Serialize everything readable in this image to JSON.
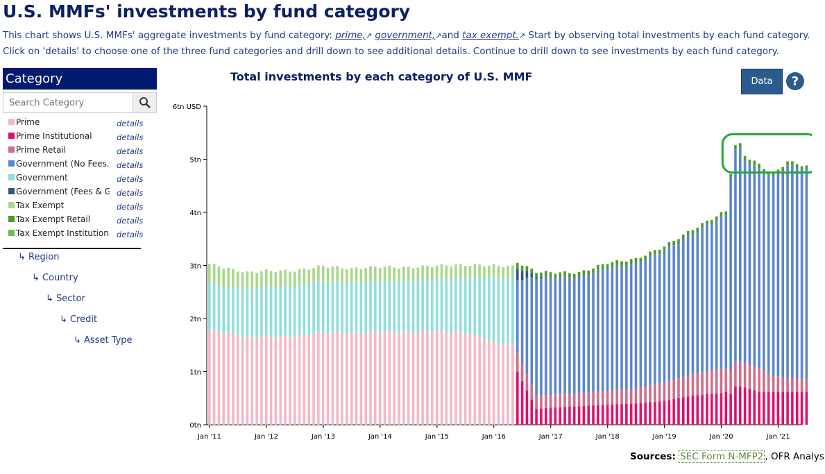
{
  "page": {
    "title": "U.S. MMFs' investments by fund category",
    "intro": {
      "text1": "This chart shows U.S. MMFs' aggregate investments by fund category: ",
      "link_prime": "prime,",
      "link_government": "government,",
      "text_and": "and ",
      "link_tax_exempt": "tax exempt.",
      "text2": " Start by observing total investments by each fund category. Click on 'details' to choose one of the three fund categories and drill down to see additional details. Continue to drill down to see investments by each fund category."
    },
    "ext_icon": "external-link-icon"
  },
  "sidebar": {
    "header": "Category",
    "search_placeholder": "Search Category",
    "search_icon": "search-icon",
    "categories": [
      {
        "label": "Prime",
        "color": "#f4b8c4",
        "details": "details"
      },
      {
        "label": "Prime Institutional",
        "color": "#e0106b",
        "details": "details"
      },
      {
        "label": "Prime Retail",
        "color": "#cc6f8a",
        "details": "details"
      },
      {
        "label": "Government (No Fees...",
        "color": "#5b86cc",
        "details": "details"
      },
      {
        "label": "Government",
        "color": "#8fdedd",
        "details": "details"
      },
      {
        "label": "Government (Fees & G...",
        "color": "#34567a",
        "details": "details"
      },
      {
        "label": "Tax Exempt",
        "color": "#a8d88c",
        "details": "details"
      },
      {
        "label": "Tax Exempt Retail",
        "color": "#4f9a2a",
        "details": "details"
      },
      {
        "label": "Tax Exempt Institutional",
        "color": "#6bbf4a",
        "details": "details"
      }
    ],
    "hierarchy": [
      "↳ Region",
      "↳ Country",
      "↳ Sector",
      "↳ Credit",
      "↳ Asset Type"
    ]
  },
  "toolbar": {
    "data_label": "Data",
    "help_icon": "help-icon"
  },
  "sources": {
    "label": "Sources:",
    "link": "SEC Form N-MFP2",
    "rest": ", OFR Analysis"
  },
  "chart_data": {
    "type": "bar",
    "stacked": true,
    "title": "Total investments by each category of U.S. MMF",
    "y_unit_label": "6tn USD",
    "ylim": [
      0,
      6
    ],
    "y_ticks": [
      "0tn",
      "1tn",
      "2tn",
      "3tn",
      "4tn",
      "5tn",
      "6tn USD"
    ],
    "x_ticks": [
      "Jan '11",
      "Jan '12",
      "Jan '13",
      "Jan '14",
      "Jan '15",
      "Jan '16",
      "Jan '17",
      "Jan '18",
      "Jan '19",
      "Jan '20",
      "Jan '21"
    ],
    "x_start": "2011-01",
    "x_end": "2021-07",
    "period": "monthly",
    "highlight": {
      "from": "2020-03",
      "to": "2021-07",
      "color": "#22aa33"
    },
    "series_phase1": {
      "period": "2011-01 to 2016-05",
      "series": [
        "Prime",
        "Government",
        "Tax Exempt"
      ]
    },
    "series_phase2": {
      "period": "2016-06 to 2021-07",
      "series": [
        "Prime Institutional",
        "Prime Retail",
        "Government (No Fees...",
        "Government (Fees & G...",
        "Tax Exempt Retail"
      ]
    },
    "keyframes": [
      {
        "date": "2011-01",
        "prime": 1.78,
        "gov": 0.88,
        "tax": 0.37
      },
      {
        "date": "2011-06",
        "prime": 1.72,
        "gov": 0.85,
        "tax": 0.35
      },
      {
        "date": "2011-09",
        "prime": 1.64,
        "gov": 0.91,
        "tax": 0.32
      },
      {
        "date": "2012-01",
        "prime": 1.66,
        "gov": 0.93,
        "tax": 0.31
      },
      {
        "date": "2012-07",
        "prime": 1.66,
        "gov": 0.94,
        "tax": 0.3
      },
      {
        "date": "2013-01",
        "prime": 1.74,
        "gov": 0.96,
        "tax": 0.29
      },
      {
        "date": "2013-07",
        "prime": 1.73,
        "gov": 0.93,
        "tax": 0.28
      },
      {
        "date": "2014-01",
        "prime": 1.76,
        "gov": 0.95,
        "tax": 0.27
      },
      {
        "date": "2014-07",
        "prime": 1.74,
        "gov": 0.96,
        "tax": 0.26
      },
      {
        "date": "2015-01",
        "prime": 1.76,
        "gov": 0.98,
        "tax": 0.26
      },
      {
        "date": "2015-07",
        "prime": 1.74,
        "gov": 1.02,
        "tax": 0.25
      },
      {
        "date": "2016-01",
        "prime": 1.56,
        "gov": 1.21,
        "tax": 0.23
      },
      {
        "date": "2016-05",
        "prime": 1.5,
        "gov": 1.26,
        "tax": 0.22
      },
      {
        "date": "2016-06",
        "pinst": 1.0,
        "pret": 0.35,
        "govnf": 1.38,
        "govfg": 0.22,
        "txr": 0.11
      },
      {
        "date": "2016-10",
        "pinst": 0.3,
        "pret": 0.25,
        "govnf": 2.22,
        "govfg": 0.03,
        "txr": 0.08
      },
      {
        "date": "2017-01",
        "pinst": 0.32,
        "pret": 0.24,
        "govnf": 2.22,
        "govfg": 0.0,
        "txr": 0.09
      },
      {
        "date": "2017-07",
        "pinst": 0.35,
        "pret": 0.25,
        "govnf": 2.17,
        "govfg": 0.0,
        "txr": 0.09
      },
      {
        "date": "2018-01",
        "pinst": 0.38,
        "pret": 0.26,
        "govnf": 2.32,
        "govfg": 0.0,
        "txr": 0.09
      },
      {
        "date": "2018-07",
        "pinst": 0.4,
        "pret": 0.28,
        "govnf": 2.35,
        "govfg": 0.0,
        "txr": 0.09
      },
      {
        "date": "2019-01",
        "pinst": 0.45,
        "pret": 0.35,
        "govnf": 2.48,
        "govfg": 0.0,
        "txr": 0.08
      },
      {
        "date": "2019-07",
        "pinst": 0.55,
        "pret": 0.4,
        "govnf": 2.65,
        "govfg": 0.0,
        "txr": 0.08
      },
      {
        "date": "2020-01",
        "pinst": 0.6,
        "pret": 0.45,
        "govnf": 2.85,
        "govfg": 0.0,
        "txr": 0.08
      },
      {
        "date": "2020-02",
        "pinst": 0.62,
        "pret": 0.45,
        "govnf": 2.87,
        "govfg": 0.0,
        "txr": 0.08
      },
      {
        "date": "2020-03",
        "pinst": 0.58,
        "pret": 0.44,
        "govnf": 3.65,
        "govfg": 0.0,
        "txr": 0.08
      },
      {
        "date": "2020-04",
        "pinst": 0.72,
        "pret": 0.46,
        "govnf": 4.0,
        "govfg": 0.0,
        "txr": 0.08
      },
      {
        "date": "2020-05",
        "pinst": 0.72,
        "pret": 0.46,
        "govnf": 4.02,
        "govfg": 0.0,
        "txr": 0.08
      },
      {
        "date": "2020-06",
        "pinst": 0.7,
        "pret": 0.46,
        "govnf": 3.83,
        "govfg": 0.0,
        "txr": 0.08
      },
      {
        "date": "2020-09",
        "pinst": 0.62,
        "pret": 0.45,
        "govnf": 3.75,
        "govfg": 0.0,
        "txr": 0.08
      },
      {
        "date": "2020-12",
        "pinst": 0.62,
        "pret": 0.3,
        "govnf": 3.73,
        "govfg": 0.0,
        "txr": 0.07
      },
      {
        "date": "2021-03",
        "pinst": 0.62,
        "pret": 0.26,
        "govnf": 4.01,
        "govfg": 0.0,
        "txr": 0.07
      },
      {
        "date": "2021-07",
        "pinst": 0.62,
        "pret": 0.24,
        "govnf": 3.95,
        "govfg": 0.0,
        "txr": 0.06
      }
    ]
  }
}
